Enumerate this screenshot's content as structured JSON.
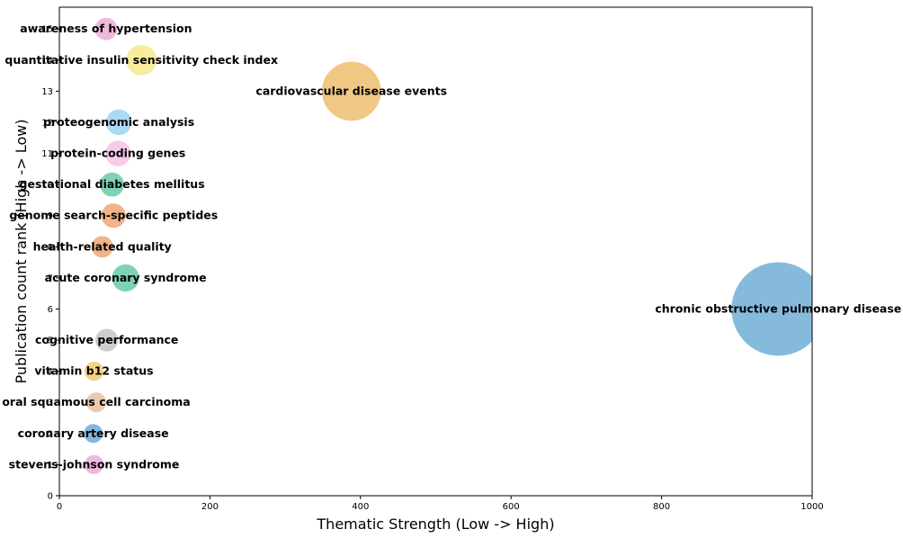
{
  "chart_data": {
    "type": "scatter",
    "xlabel": "Thematic Strength (Low -> High)",
    "ylabel": "Publication count rank (High -> Low)",
    "xlim": [
      0,
      1000
    ],
    "ylim": [
      0,
      15.7
    ],
    "xticks": [
      0,
      200,
      400,
      600,
      800,
      1000
    ],
    "yticks": [
      0,
      1,
      2,
      3,
      4,
      5,
      6,
      7,
      8,
      9,
      10,
      11,
      12,
      13,
      14,
      15
    ],
    "grid": false,
    "points": [
      {
        "label": "stevens-johnson syndrome",
        "x": 46,
        "y": 1,
        "color": "#e7a3d2"
      },
      {
        "label": "coronary artery disease",
        "x": 45,
        "y": 2,
        "color": "#5a9fd0"
      },
      {
        "label": "oral squamous cell carcinoma",
        "x": 49,
        "y": 3,
        "color": "#e0b897"
      },
      {
        "label": "vitamin b12 status",
        "x": 46,
        "y": 4,
        "color": "#f2c260"
      },
      {
        "label": "cognitive performance",
        "x": 63,
        "y": 5,
        "color": "#bdbdbd"
      },
      {
        "label": "chronic obstructive pulmonary disease",
        "x": 955,
        "y": 6,
        "color": "#5da3d1"
      },
      {
        "label": "acute coronary syndrome",
        "x": 88,
        "y": 7,
        "color": "#54c39e"
      },
      {
        "label": "health-related quality",
        "x": 57,
        "y": 8,
        "color": "#ec9a5f"
      },
      {
        "label": "genome search-specific peptides",
        "x": 72,
        "y": 9,
        "color": "#ec9a5f"
      },
      {
        "label": "gestational diabetes mellitus",
        "x": 70,
        "y": 10,
        "color": "#54c39e"
      },
      {
        "label": "protein-coding genes",
        "x": 78,
        "y": 11,
        "color": "#f6b8e6"
      },
      {
        "label": "proteogenomic analysis",
        "x": 79,
        "y": 12,
        "color": "#8fcdf2"
      },
      {
        "label": "cardiovascular disease events",
        "x": 388,
        "y": 13,
        "color": "#ebb55b"
      },
      {
        "label": "quantitative insulin sensitivity check index",
        "x": 109,
        "y": 14,
        "color": "#f3e57a"
      },
      {
        "label": "awareness of hypertension",
        "x": 62,
        "y": 15,
        "color": "#e7a3d2"
      }
    ]
  }
}
